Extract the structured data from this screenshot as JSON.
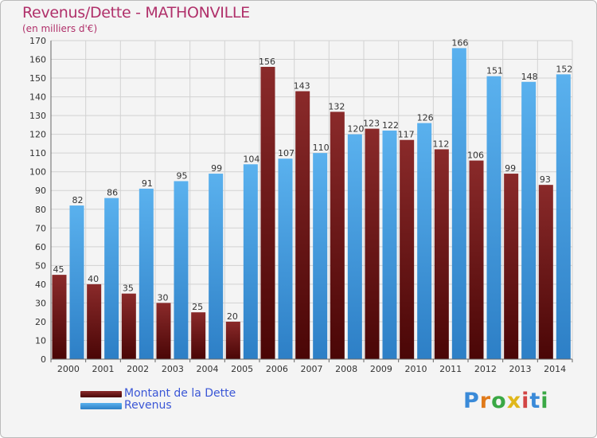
{
  "header": {
    "title": "Revenus/Dette - MATHONVILLE",
    "subtitle": "(en milliers d'€)"
  },
  "legend": {
    "items": [
      {
        "label": "Montant de la Dette",
        "color": "#6b1a1a"
      },
      {
        "label": "Revenus",
        "color": "#4ea6e6"
      }
    ]
  },
  "logo": {
    "text": "Proxiti"
  },
  "colors": {
    "title": "#b0306a",
    "legend_text": "#3a56d6",
    "background": "#f4f4f4"
  },
  "chart_data": {
    "type": "bar",
    "categories": [
      "2000",
      "2001",
      "2002",
      "2003",
      "2004",
      "2005",
      "2006",
      "2007",
      "2008",
      "2009",
      "2010",
      "2011",
      "2012",
      "2013",
      "2014"
    ],
    "series": [
      {
        "name": "Montant de la Dette",
        "values": [
          45,
          40,
          35,
          30,
          25,
          20,
          156,
          143,
          132,
          123,
          117,
          112,
          106,
          99,
          93
        ]
      },
      {
        "name": "Revenus",
        "values": [
          82,
          86,
          91,
          95,
          99,
          104,
          107,
          110,
          120,
          122,
          126,
          166,
          151,
          148,
          152
        ]
      }
    ],
    "ylim": [
      0,
      170
    ],
    "yticks": [
      0,
      10,
      20,
      30,
      40,
      50,
      60,
      70,
      80,
      90,
      100,
      110,
      120,
      130,
      140,
      150,
      160,
      170
    ],
    "grid": true,
    "legend_position": "bottom-left"
  }
}
